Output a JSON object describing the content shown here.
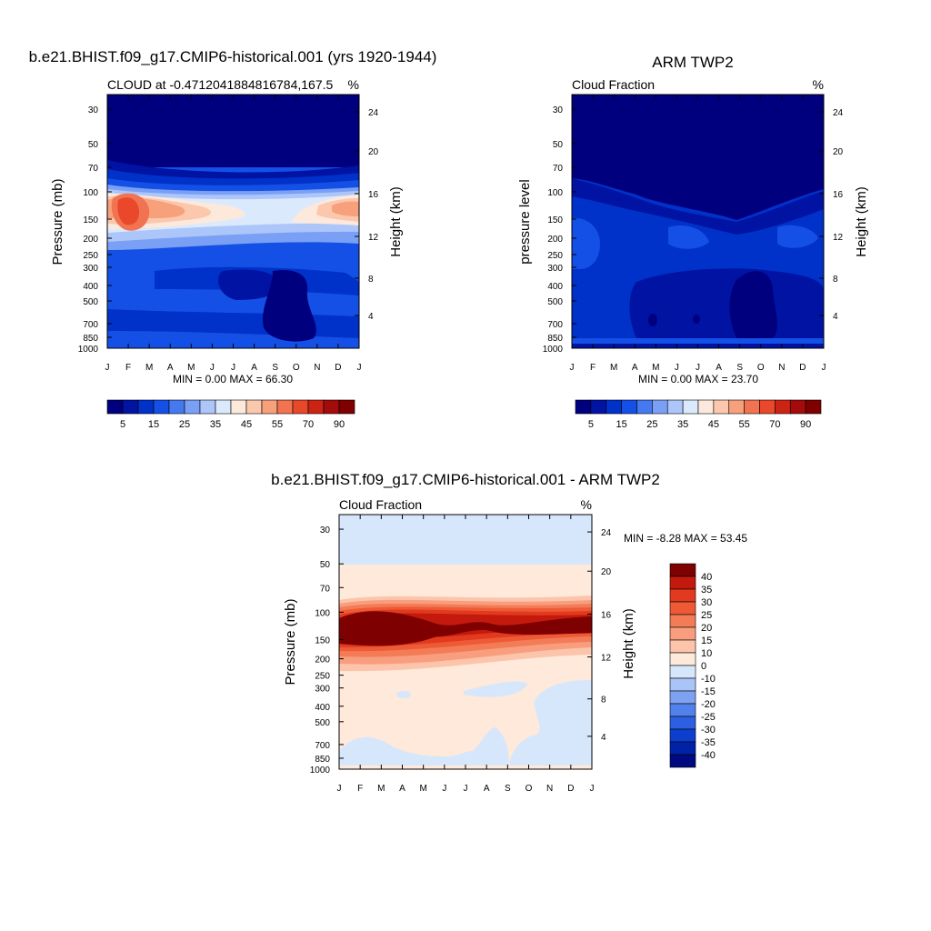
{
  "chart_data": [
    {
      "type": "heatmap",
      "title": "b.e21.BHIST.f09_g17.CMIP6-historical.001 (yrs 1920-1944)",
      "left_string": "CLOUD at -0.4712041884816784,167.5",
      "right_string": "%",
      "ylabel": "Pressure (mb)",
      "ylabel_right": "Height (km)",
      "x_ticks": [
        "J",
        "F",
        "M",
        "A",
        "M",
        "J",
        "J",
        "A",
        "S",
        "O",
        "N",
        "D",
        "J"
      ],
      "y_ticks": [
        "30",
        "50",
        "70",
        "100",
        "150",
        "200",
        "250",
        "300",
        "400",
        "500",
        "700",
        "850",
        "1000"
      ],
      "y_ticks_right": [
        "24",
        "20",
        "16",
        "12",
        "8",
        "4"
      ],
      "minmax": "MIN =   0.00 MAX =  66.30",
      "colorbar_labels": [
        "5",
        "15",
        "25",
        "35",
        "45",
        "55",
        "70",
        "90"
      ],
      "colors": [
        "#00007f",
        "#0013a3",
        "#0031c8",
        "#1450e5",
        "#4678f0",
        "#7aa0f5",
        "#adc6fa",
        "#dbe9fd",
        "#fde9dc",
        "#fbc7ad",
        "#f7a07c",
        "#f27351",
        "#e9482b",
        "#cc2414",
        "#a30c0a",
        "#7f0000"
      ],
      "profile_months": [
        "J",
        "F",
        "M",
        "A",
        "M",
        "J",
        "J",
        "A",
        "S",
        "O",
        "N",
        "D",
        "J"
      ],
      "profile_grid_pressure": [
        30,
        50,
        70,
        100,
        150,
        200,
        250,
        300,
        400,
        500,
        700,
        850,
        1000
      ]
    },
    {
      "type": "heatmap",
      "title": "ARM TWP2",
      "left_string": "Cloud Fraction",
      "right_string": "%",
      "ylabel": "pressure level",
      "ylabel_right": "Height (km)",
      "x_ticks": [
        "J",
        "F",
        "M",
        "A",
        "M",
        "J",
        "J",
        "A",
        "S",
        "O",
        "N",
        "D",
        "J"
      ],
      "y_ticks": [
        "30",
        "50",
        "70",
        "100",
        "150",
        "200",
        "250",
        "300",
        "400",
        "500",
        "700",
        "850",
        "1000"
      ],
      "y_ticks_right": [
        "24",
        "20",
        "16",
        "12",
        "8",
        "4"
      ],
      "minmax": "MIN =   0.00 MAX =  23.70",
      "colorbar_labels": [
        "5",
        "15",
        "25",
        "35",
        "45",
        "55",
        "70",
        "90"
      ]
    },
    {
      "type": "heatmap",
      "title": "b.e21.BHIST.f09_g17.CMIP6-historical.001 - ARM TWP2",
      "left_string": "Cloud Fraction",
      "right_string": "%",
      "ylabel": "Pressure (mb)",
      "ylabel_right": "Height (km)",
      "x_ticks": [
        "J",
        "F",
        "M",
        "A",
        "M",
        "J",
        "J",
        "A",
        "S",
        "O",
        "N",
        "D",
        "J"
      ],
      "y_ticks": [
        "30",
        "50",
        "70",
        "100",
        "150",
        "200",
        "250",
        "300",
        "400",
        "500",
        "700",
        "850",
        "1000"
      ],
      "y_ticks_right": [
        "24",
        "20",
        "16",
        "12",
        "8",
        "4"
      ],
      "minmax": "MIN =  -8.28 MAX =  53.45",
      "colorbar_labels": [
        "40",
        "35",
        "30",
        "25",
        "20",
        "15",
        "10",
        "0",
        "-10",
        "-15",
        "-20",
        "-25",
        "-30",
        "-35",
        "-40"
      ],
      "colors": [
        "#7f0000",
        "#c41a0e",
        "#e23a1e",
        "#ee5a36",
        "#f37c57",
        "#f89e7e",
        "#fcc4aa",
        "#fee9da",
        "#d6e7fc",
        "#a9c4f7",
        "#7ea2f2",
        "#5381ec",
        "#2c5fe1",
        "#0d3ecc",
        "#0022a6",
        "#00097f"
      ]
    }
  ]
}
